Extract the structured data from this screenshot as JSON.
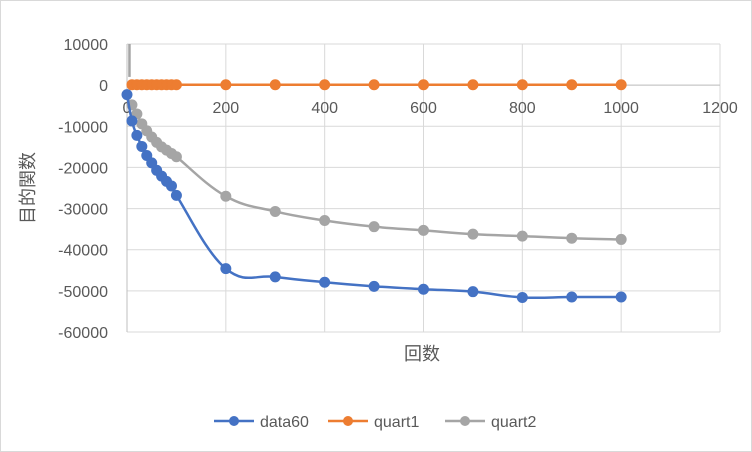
{
  "chart_data": {
    "type": "scatter",
    "title": "",
    "xlabel": "回数",
    "ylabel": "目的関数",
    "xlim": [
      0,
      1200
    ],
    "ylim": [
      -60000,
      10000
    ],
    "x_ticks": [
      0,
      200,
      400,
      600,
      800,
      1000,
      1200
    ],
    "y_ticks": [
      10000,
      0,
      -10000,
      -20000,
      -30000,
      -40000,
      -50000,
      -60000
    ],
    "x_tick_labels": [
      "0",
      "200",
      "400",
      "600",
      "800",
      "1000",
      "1200"
    ],
    "y_tick_labels": [
      "10000",
      "0",
      "-10000",
      "-20000",
      "-30000",
      "-40000",
      "-50000",
      "-60000"
    ],
    "grid": true,
    "legend_position": "bottom",
    "series": [
      {
        "name": "data60",
        "color": "#4472C4",
        "x": [
          0,
          10,
          20,
          30,
          40,
          50,
          60,
          70,
          80,
          90,
          100,
          200,
          300,
          400,
          500,
          600,
          700,
          800,
          900,
          1000
        ],
        "y": [
          -2300,
          -8700,
          -12200,
          -14900,
          -17100,
          -18900,
          -20700,
          -22100,
          -23400,
          -24500,
          -26800,
          -44600,
          -46600,
          -47900,
          -48900,
          -49600,
          -50200,
          -51600,
          -51500,
          -51500
        ]
      },
      {
        "name": "quart1",
        "color": "#ED7D31",
        "x": [
          10,
          20,
          30,
          40,
          50,
          60,
          70,
          80,
          90,
          100,
          200,
          300,
          400,
          500,
          600,
          700,
          800,
          900,
          1000
        ],
        "y": [
          100,
          100,
          100,
          100,
          100,
          100,
          100,
          100,
          100,
          100,
          100,
          100,
          100,
          100,
          100,
          100,
          100,
          100,
          100
        ]
      },
      {
        "name": "quart2",
        "color": "#A5A5A5",
        "x": [
          10,
          20,
          30,
          40,
          50,
          60,
          70,
          80,
          90,
          100,
          200,
          300,
          400,
          500,
          600,
          700,
          800,
          900,
          1000
        ],
        "y": [
          -4800,
          -7000,
          -9400,
          -11100,
          -12600,
          -13900,
          -15000,
          -15800,
          -16600,
          -17400,
          -27000,
          -30700,
          -32900,
          -34400,
          -35300,
          -36200,
          -36700,
          -37200,
          -37500
        ]
      }
    ]
  }
}
